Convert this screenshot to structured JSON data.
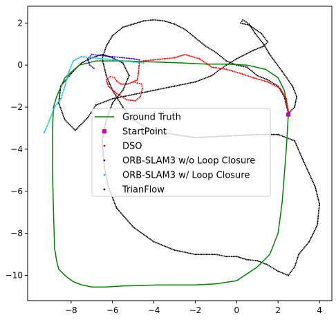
{
  "chart_data": {
    "type": "line",
    "xlim": [
      -10.1,
      4.6
    ],
    "ylim": [
      -11.2,
      2.8
    ],
    "x_ticks": [
      -8,
      -6,
      -4,
      -2,
      0,
      2,
      4
    ],
    "y_ticks": [
      2,
      0,
      -2,
      -4,
      -6,
      -8,
      -10
    ],
    "x_tick_labels": [
      "−8",
      "−6",
      "−4",
      "−2",
      "0",
      "2",
      "4"
    ],
    "y_tick_labels": [
      "2",
      "0",
      "−2",
      "−4",
      "−6",
      "−8",
      "−10"
    ],
    "grid": false,
    "legend_position": "center",
    "series": [
      {
        "name": "Ground Truth",
        "style": "line",
        "color": "#008000",
        "x": [
          2.5,
          2.4,
          2.3,
          2.0,
          1.4,
          0.5,
          -0.5,
          -1.5,
          -2.5,
          -4.0,
          -5.5,
          -6.8,
          -7.6,
          -8.3,
          -8.7,
          -8.85,
          -8.9,
          -8.9,
          -8.85,
          -8.8,
          -8.7,
          -8.6,
          -8.3,
          -7.9,
          -7.5,
          -7.0,
          -6.3,
          -5.5,
          -4.7,
          -3.8,
          -2.9,
          -2.0,
          -1.0,
          0.0,
          1.0,
          1.6,
          2.0,
          2.2,
          2.4,
          2.5
        ],
        "y": [
          -2.3,
          -1.7,
          -1.2,
          -0.6,
          -0.2,
          0.0,
          0.05,
          0.05,
          0.1,
          0.15,
          0.2,
          0.2,
          0.0,
          -0.6,
          -1.5,
          -2.0,
          -3.0,
          -5.0,
          -7.0,
          -8.7,
          -9.3,
          -9.7,
          -10.0,
          -10.3,
          -10.45,
          -10.55,
          -10.55,
          -10.5,
          -10.48,
          -10.45,
          -10.45,
          -10.45,
          -10.4,
          -10.25,
          -9.6,
          -9.0,
          -8.0,
          -6.5,
          -4.0,
          -2.3
        ]
      },
      {
        "name": "StartPoint",
        "style": "square",
        "color": "#bf00bf",
        "x": [
          2.5
        ],
        "y": [
          -2.35
        ]
      },
      {
        "name": "DSO",
        "style": "dots",
        "color": "#ff0000",
        "x": [
          2.5,
          2.4,
          2.1,
          1.5,
          0.8,
          0.2,
          -0.5,
          -1.2,
          -1.8,
          -2.5,
          -3.0,
          -3.5,
          -4.0,
          -4.5,
          -4.7,
          -4.75,
          -4.8,
          -5.0,
          -5.3,
          -5.6,
          -5.8,
          -5.9,
          -6.1,
          -6.3,
          -6.2,
          -5.8,
          -5.3,
          -4.9,
          -4.65,
          -4.55,
          -4.6,
          -4.8,
          -5.0
        ],
        "y": [
          -2.2,
          -1.6,
          -1.1,
          -0.8,
          -0.6,
          -0.4,
          -0.2,
          -0.1,
          0.3,
          0.5,
          0.35,
          0.3,
          0.25,
          0.2,
          0.15,
          -0.4,
          -0.7,
          -0.8,
          -0.9,
          -0.9,
          -0.75,
          -0.6,
          -0.55,
          -0.7,
          -1.0,
          -1.35,
          -1.65,
          -1.7,
          -1.5,
          -1.1,
          -0.9,
          -0.85,
          -0.8
        ]
      },
      {
        "name": "ORB-SLAM3 w/o Loop Closure",
        "style": "dots",
        "color": "#2b00ff",
        "x": [
          -4.7,
          -5.0,
          -5.5,
          -6.0,
          -6.5,
          -7.0,
          -7.2,
          -7.1,
          -6.9
        ],
        "y": [
          0.25,
          0.3,
          0.35,
          0.4,
          0.45,
          0.5,
          0.3,
          0.0,
          -0.15
        ]
      },
      {
        "name": "ORB-SLAM3 w/ Loop Closure",
        "style": "dots",
        "color": "#00c8d2",
        "x": [
          -4.5,
          -5.0,
          -5.5,
          -6.0,
          -6.5,
          -7.0,
          -7.5,
          -7.9,
          -8.1,
          -8.3,
          -8.5,
          -8.8,
          -9.0,
          -9.2,
          -9.3
        ],
        "y": [
          0.1,
          0.15,
          0.2,
          0.25,
          0.3,
          0.35,
          0.4,
          0.2,
          -0.3,
          -1.0,
          -1.6,
          -2.0,
          -2.5,
          -3.0,
          -3.2
        ]
      },
      {
        "name": "TrianFlow",
        "style": "dots",
        "color": "#000000",
        "x": [
          2.5,
          2.3,
          2.0,
          1.5,
          1.0,
          0.5,
          0.0,
          -0.5,
          -1.0,
          -1.5,
          -2.0,
          -2.5,
          -3.0,
          -3.5,
          -4.0,
          -4.5,
          -5.0,
          -5.5,
          -6.0,
          -6.3,
          -6.5,
          -6.3,
          -6.0,
          -5.5,
          -5.0,
          -4.5,
          -4.0,
          -3.0,
          -2.0,
          -1.0,
          0.0,
          1.0,
          2.0,
          2.8,
          3.2,
          3.8,
          4.0,
          3.9,
          3.5,
          3.0,
          2.8,
          2.5,
          2.0,
          1.5,
          1.0,
          0.5,
          0.0,
          -0.5,
          -1.0,
          -2.0,
          -3.0,
          -4.0,
          -5.0,
          -5.8,
          -6.2,
          -6.4,
          -6.5,
          -6.3,
          -6.0,
          -5.5,
          -5.2,
          -5.5,
          -6.0,
          -6.5,
          -7.0,
          -7.5,
          -8.0,
          -8.5,
          -8.6,
          -8.3,
          -7.8,
          -7.2,
          -6.8,
          -6.0,
          -5.0,
          -4.0,
          -3.0,
          -2.0,
          -1.2,
          -0.8,
          -0.5,
          0.0,
          0.8,
          1.3,
          1.5,
          1.2,
          0.6,
          0.2,
          0.3,
          0.6,
          0.9,
          1.3,
          1.6,
          2.2,
          2.7,
          2.9,
          2.8,
          2.5
        ],
        "y": [
          -2.3,
          -1.5,
          -1.0,
          -0.7,
          -0.5,
          -0.1,
          0.0,
          0.2,
          0.6,
          0.9,
          1.3,
          1.7,
          1.95,
          2.1,
          2.15,
          2.1,
          1.95,
          1.8,
          1.4,
          0.9,
          0.3,
          -0.5,
          -1.2,
          -2.0,
          -2.6,
          -2.9,
          -3.1,
          -3.3,
          -3.45,
          -3.4,
          -3.35,
          -3.3,
          -3.3,
          -3.6,
          -4.5,
          -5.8,
          -6.6,
          -7.6,
          -8.4,
          -9.0,
          -9.6,
          -10.0,
          -9.8,
          -9.5,
          -9.3,
          -9.25,
          -9.1,
          -9.1,
          -9.0,
          -9.0,
          -8.8,
          -8.4,
          -7.7,
          -6.8,
          -5.8,
          -4.8,
          -3.6,
          -2.6,
          -1.8,
          -1.2,
          -0.5,
          0.1,
          0.35,
          0.5,
          0.35,
          0.1,
          -0.4,
          -1.0,
          -1.8,
          -2.6,
          -3.1,
          -2.5,
          -1.9,
          -1.6,
          -1.4,
          -1.2,
          -1.0,
          -0.8,
          -0.5,
          -0.2,
          0.0,
          0.3,
          0.7,
          0.9,
          1.1,
          1.5,
          1.9,
          2.0,
          2.15,
          1.95,
          1.5,
          1.0,
          0.5,
          -0.3,
          -1.0,
          -1.5,
          -2.0,
          -2.3
        ]
      }
    ]
  }
}
